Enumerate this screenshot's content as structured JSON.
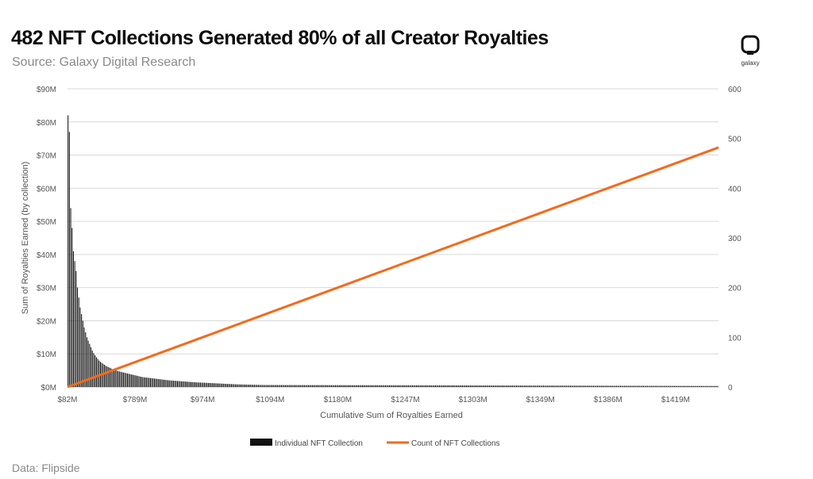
{
  "header": {
    "title": "482 NFT Collections Generated 80% of all Creator Royalties",
    "subtitle": "Source: Galaxy Digital Research",
    "logo_text": "galaxy"
  },
  "footer": {
    "text": "Data: Flipside"
  },
  "colors": {
    "bars": "#111111",
    "line": "#f26b1d",
    "grid": "#d9d9d9",
    "axis_text": "#555555"
  },
  "chart_data": {
    "type": "bar",
    "xlabel": "Cumulative Sum of Royalties Earned",
    "ylabel": "Sum of Royalties Earned (by collection)",
    "y2label": "",
    "x_tick_labels": [
      "$82M",
      "$789M",
      "$974M",
      "$1094M",
      "$1180M",
      "$1247M",
      "$1303M",
      "$1349M",
      "$1386M",
      "$1419M"
    ],
    "y_ticks": [
      "$0M",
      "$10M",
      "$20M",
      "$30M",
      "$40M",
      "$50M",
      "$60M",
      "$70M",
      "$80M",
      "$90M"
    ],
    "y2_ticks": [
      "0",
      "100",
      "200",
      "300",
      "400",
      "500",
      "600"
    ],
    "ylim": [
      0,
      90
    ],
    "y2lim": [
      0,
      600
    ],
    "grid": true,
    "legend_position": "bottom-center",
    "series": [
      {
        "name": "Individual NFT Collection",
        "type": "bar",
        "axis": "left",
        "values": [
          82,
          77,
          54,
          48,
          41,
          38,
          35,
          30,
          27,
          24,
          22,
          20,
          18,
          16.5,
          15,
          14,
          13,
          12,
          11,
          10.2,
          9.6,
          9.0,
          8.5,
          8.0,
          7.6,
          7.3,
          7.0,
          6.7,
          6.4,
          6.2,
          6.0,
          5.8,
          5.6,
          5.4,
          5.2,
          5.1,
          5.0,
          4.8,
          4.7,
          4.6,
          4.5,
          4.4,
          4.3,
          4.2,
          4.1,
          4.0,
          3.9,
          3.8,
          3.7,
          3.6,
          3.5,
          3.4,
          3.3,
          3.2,
          3.1,
          3.0,
          2.95,
          2.9,
          2.85,
          2.8,
          2.75,
          2.7,
          2.65,
          2.6,
          2.55,
          2.5,
          2.45,
          2.4,
          2.35,
          2.3,
          2.25,
          2.2,
          2.15,
          2.1,
          2.05,
          2.0,
          1.97,
          1.94,
          1.91,
          1.88,
          1.85,
          1.82,
          1.79,
          1.76,
          1.73,
          1.7,
          1.67,
          1.64,
          1.61,
          1.58,
          1.55,
          1.52,
          1.49,
          1.46,
          1.43,
          1.4,
          1.38,
          1.36,
          1.34,
          1.32,
          1.3,
          1.28,
          1.26,
          1.24,
          1.22,
          1.2,
          1.18,
          1.16,
          1.14,
          1.12,
          1.1,
          1.08,
          1.06,
          1.04,
          1.02,
          1.0,
          0.98,
          0.96,
          0.94,
          0.92,
          0.9,
          0.88,
          0.86,
          0.84,
          0.82,
          0.8,
          0.79,
          0.78,
          0.77,
          0.76,
          0.75,
          0.74,
          0.73,
          0.72,
          0.71,
          0.7,
          0.69,
          0.68,
          0.67,
          0.66,
          0.65,
          0.64,
          0.63,
          0.62,
          0.61,
          0.6
        ]
      },
      {
        "name": "Count of NFT Collections",
        "type": "line",
        "axis": "right",
        "start": 0,
        "end": 482
      }
    ]
  }
}
